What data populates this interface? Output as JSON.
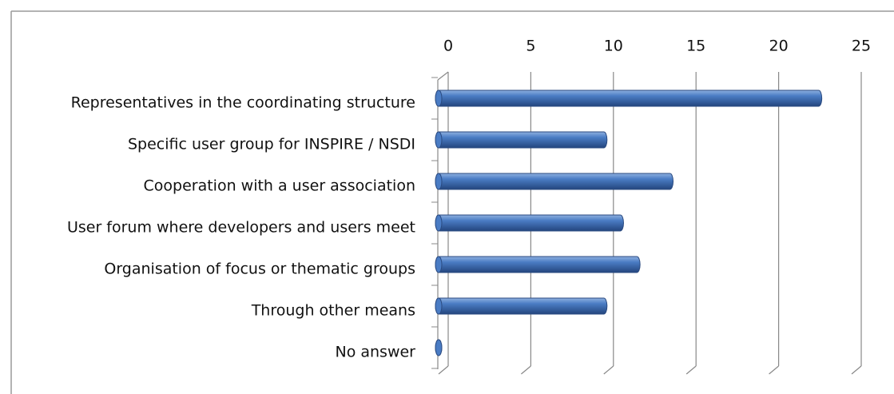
{
  "chart_data": {
    "type": "bar",
    "orientation": "horizontal",
    "categories": [
      "Representatives in the coordinating structure",
      "Specific user group for INSPIRE / NSDI",
      "Cooperation with a user association",
      "User forum where developers and users meet",
      "Organisation of focus or thematic groups",
      "Through other means",
      "No answer"
    ],
    "values": [
      23,
      10,
      14,
      11,
      12,
      10,
      0
    ],
    "color": "#4a7cc4",
    "xlim": [
      0,
      25
    ],
    "xticks": [
      0,
      5,
      10,
      15,
      20,
      25
    ],
    "grid": true
  }
}
